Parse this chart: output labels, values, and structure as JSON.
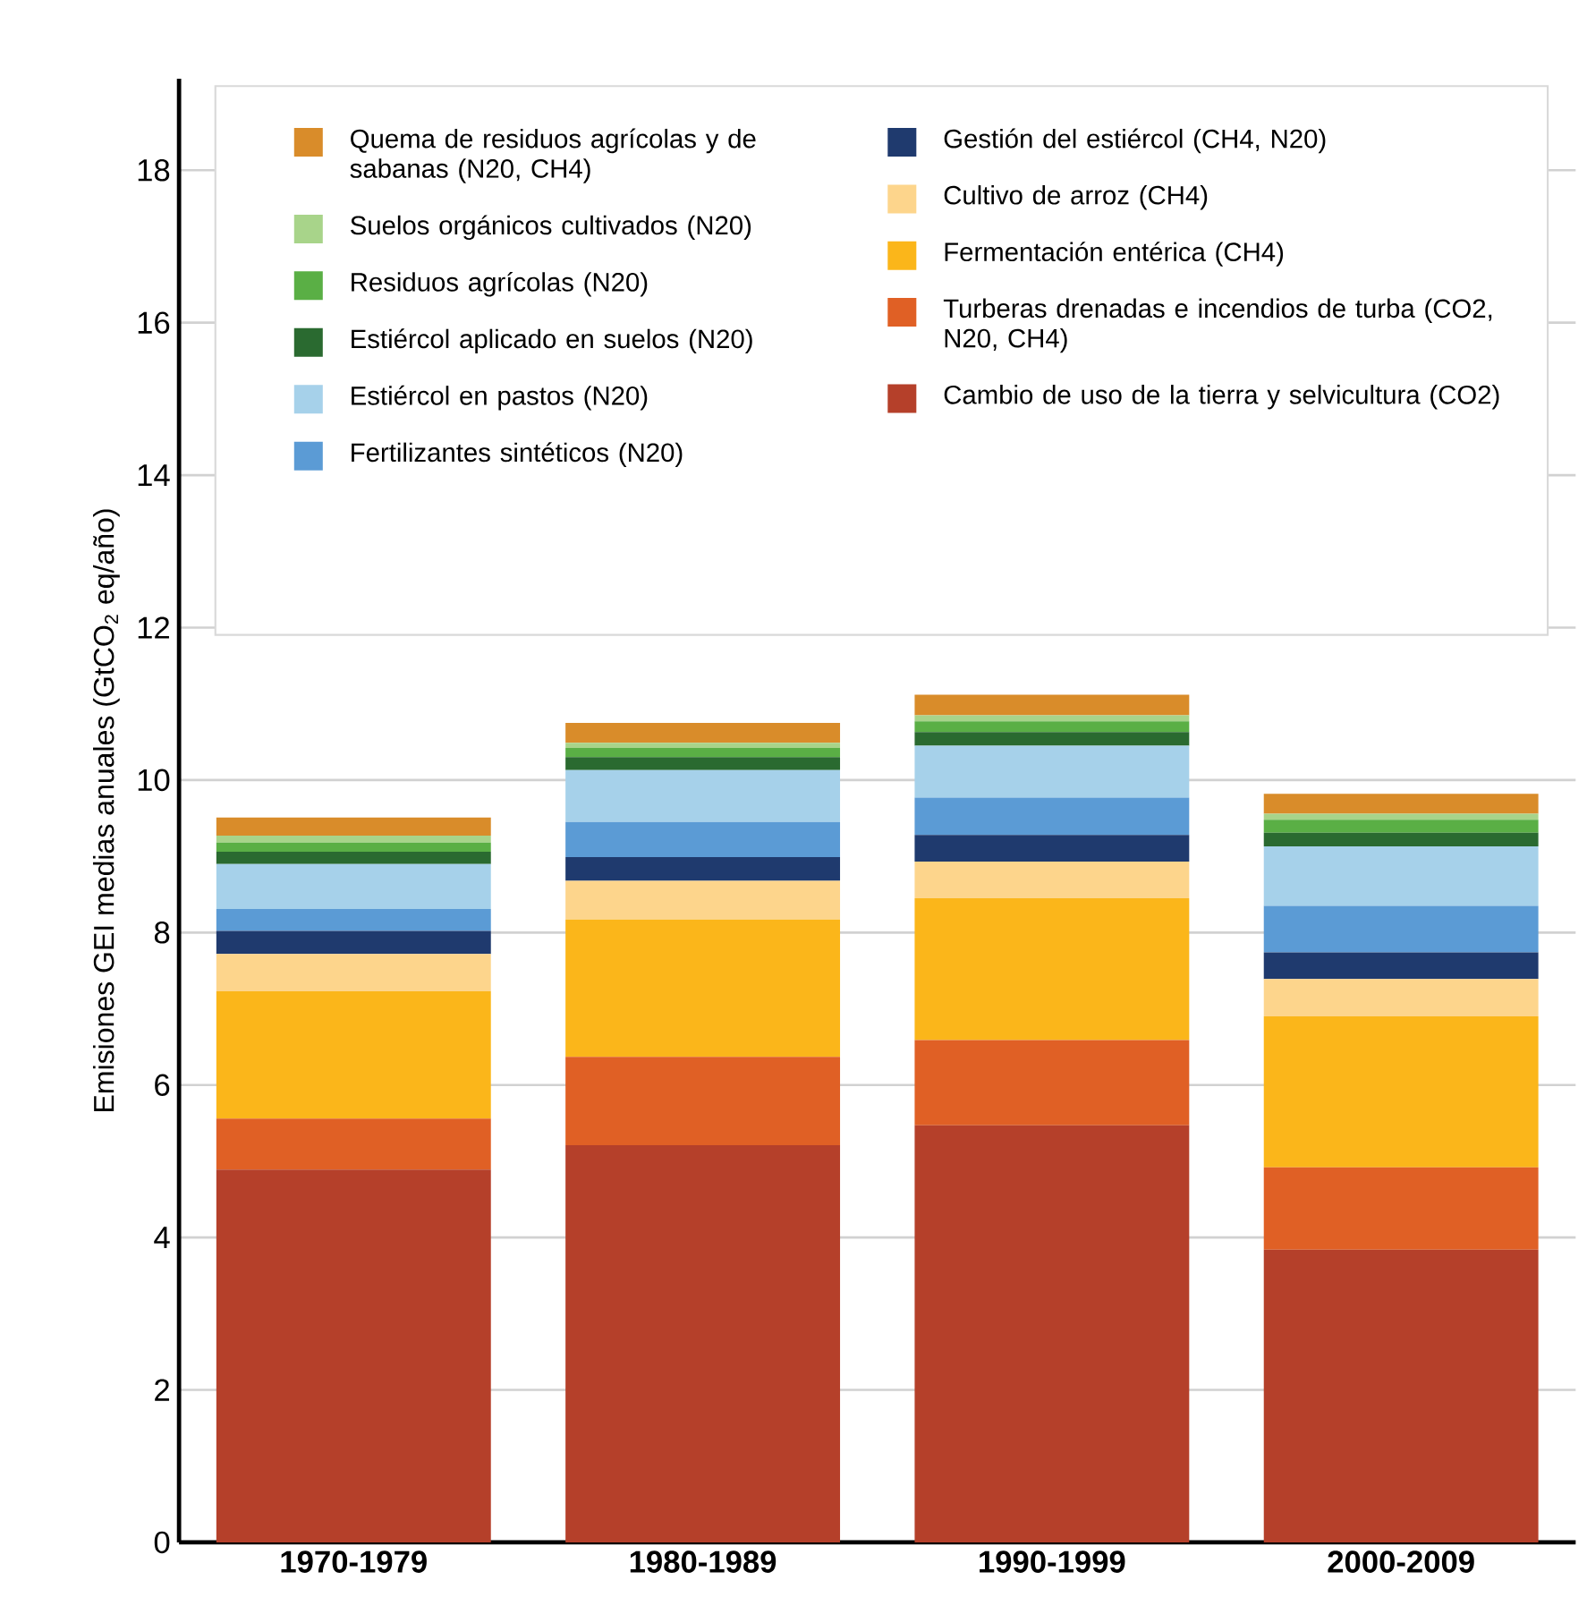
{
  "chart_data": {
    "type": "bar",
    "stacked": true,
    "ylabel": "Emisiones GEI medias anuales (GtCO$_{2}$ eq/año)",
    "categories": [
      "1970-1979",
      "1980-1989",
      "1990-1999",
      "2000-2009"
    ],
    "ylim": [
      0,
      19.2
    ],
    "yticks": [
      0,
      2,
      4,
      6,
      8,
      10,
      12,
      14,
      16,
      18
    ],
    "grid": "y",
    "legend": "top",
    "series": [
      {
        "name": "Cambio de uso de la tierra y selvicultura (CO2)",
        "color": "#b5402a",
        "values": [
          4.89,
          5.21,
          5.47,
          3.84
        ]
      },
      {
        "name": "Turberas drenadas e incendios de turba (CO2, N20, CH4)",
        "color": "#e06025",
        "values": [
          0.67,
          1.16,
          1.12,
          1.08
        ]
      },
      {
        "name": "Fermentación entérica (CH4)",
        "color": "#fbb61a",
        "values": [
          1.67,
          1.8,
          1.86,
          1.98
        ]
      },
      {
        "name": "Cultivo de arroz (CH4)",
        "color": "#fdd58c",
        "values": [
          0.49,
          0.51,
          0.48,
          0.49
        ]
      },
      {
        "name": "Gestión del estiércol (CH4, N20)",
        "color": "#1f3a6e",
        "values": [
          0.3,
          0.31,
          0.35,
          0.35
        ]
      },
      {
        "name": "Fertilizantes sintéticos (N20)",
        "color": "#5b9bd5",
        "values": [
          0.29,
          0.46,
          0.49,
          0.61
        ]
      },
      {
        "name": "Estiércol en pastos (N20)",
        "color": "#a6d1ea",
        "values": [
          0.59,
          0.68,
          0.68,
          0.78
        ]
      },
      {
        "name": "Estiércol aplicado en suelos (N20)",
        "color": "#2a6a30",
        "values": [
          0.16,
          0.17,
          0.18,
          0.18
        ]
      },
      {
        "name": "Residuos agrícolas (N20)",
        "color": "#5aaf45",
        "values": [
          0.12,
          0.12,
          0.14,
          0.17
        ]
      },
      {
        "name": "Suelos orgánicos cultivados (N20)",
        "color": "#a8d48a",
        "values": [
          0.09,
          0.07,
          0.08,
          0.08
        ]
      },
      {
        "name": "Quema de residuos agrícolas y de sabanas (N20, CH4)",
        "color": "#d98c2a",
        "values": [
          0.24,
          0.26,
          0.27,
          0.26
        ]
      }
    ]
  }
}
